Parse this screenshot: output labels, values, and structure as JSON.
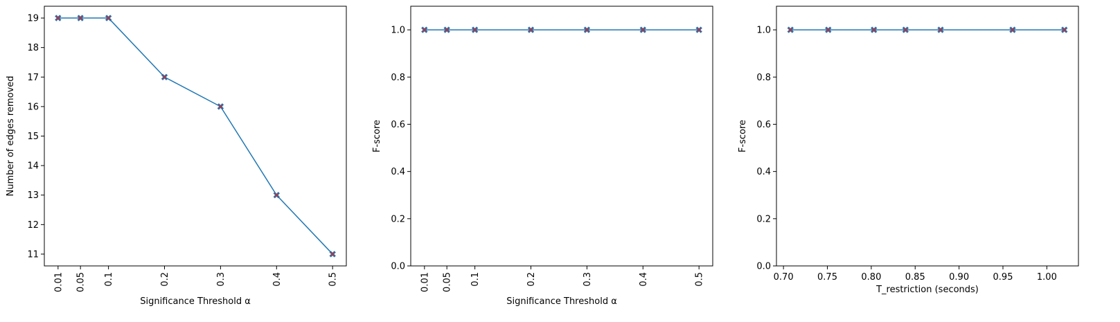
{
  "chart_data": [
    {
      "type": "line",
      "xlabel": "Significance Threshold α",
      "ylabel": "Number of edges removed",
      "x": [
        0.01,
        0.05,
        0.1,
        0.2,
        0.3,
        0.4,
        0.5
      ],
      "x_tick_labels": [
        "0.01",
        "0.05",
        "0.1",
        "0.2",
        "0.3",
        "0.4",
        "0.5"
      ],
      "x_tick_rotation": "vertical",
      "xlim": [
        -0.0145,
        0.5245
      ],
      "ylim": [
        10.6,
        19.4
      ],
      "y_ticks": [
        11,
        12,
        13,
        14,
        15,
        16,
        17,
        18,
        19
      ],
      "y_tick_labels": [
        "11",
        "12",
        "13",
        "14",
        "15",
        "16",
        "17",
        "18",
        "19"
      ],
      "series": [
        {
          "values": [
            19,
            19,
            19,
            17,
            16,
            13,
            11
          ]
        }
      ],
      "line_color": "#1f77b4",
      "marker": "X",
      "marker_color": "#d62728",
      "grid": false
    },
    {
      "type": "line",
      "xlabel": "Significance Threshold α",
      "ylabel": "F-score",
      "x": [
        0.01,
        0.05,
        0.1,
        0.2,
        0.3,
        0.4,
        0.5
      ],
      "x_tick_labels": [
        "0.01",
        "0.05",
        "0.1",
        "0.2",
        "0.3",
        "0.4",
        "0.5"
      ],
      "x_tick_rotation": "vertical",
      "xlim": [
        -0.0145,
        0.5245
      ],
      "ylim": [
        0,
        1.1
      ],
      "y_ticks": [
        0,
        0.2,
        0.4,
        0.6,
        0.8,
        1.0
      ],
      "y_tick_labels": [
        "0.0",
        "0.2",
        "0.4",
        "0.6",
        "0.8",
        "1.0"
      ],
      "series": [
        {
          "values": [
            1,
            1,
            1,
            1,
            1,
            1,
            1
          ]
        }
      ],
      "line_color": "#1f77b4",
      "marker": "X",
      "marker_color": "#d62728",
      "grid": false
    },
    {
      "type": "line",
      "xlabel": "T_restriction (seconds)",
      "ylabel": "F-score",
      "x": [
        0.708,
        0.751,
        0.803,
        0.839,
        0.879,
        0.961,
        1.02
      ],
      "x_ticks": [
        0.7,
        0.75,
        0.8,
        0.85,
        0.9,
        0.95,
        1.0
      ],
      "x_tick_labels": [
        "0.70",
        "0.75",
        "0.80",
        "0.85",
        "0.90",
        "0.95",
        "1.00"
      ],
      "x_tick_rotation": "horizontal",
      "xlim": [
        0.692,
        1.036
      ],
      "ylim": [
        0,
        1.1
      ],
      "y_ticks": [
        0,
        0.2,
        0.4,
        0.6,
        0.8,
        1.0
      ],
      "y_tick_labels": [
        "0.0",
        "0.2",
        "0.4",
        "0.6",
        "0.8",
        "1.0"
      ],
      "series": [
        {
          "values": [
            1,
            1,
            1,
            1,
            1,
            1,
            1
          ]
        }
      ],
      "line_color": "#1f77b4",
      "marker": "X",
      "marker_color": "#d62728",
      "grid": false
    }
  ]
}
